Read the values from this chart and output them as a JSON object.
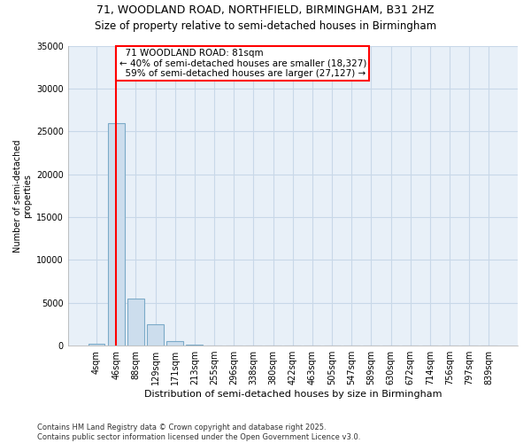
{
  "title_line1": "71, WOODLAND ROAD, NORTHFIELD, BIRMINGHAM, B31 2HZ",
  "title_line2": "Size of property relative to semi-detached houses in Birmingham",
  "xlabel": "Distribution of semi-detached houses by size in Birmingham",
  "ylabel": "Number of semi-detached\nproperties",
  "footnote": "Contains HM Land Registry data © Crown copyright and database right 2025.\nContains public sector information licensed under the Open Government Licence v3.0.",
  "categories": [
    "4sqm",
    "46sqm",
    "88sqm",
    "129sqm",
    "171sqm",
    "213sqm",
    "255sqm",
    "296sqm",
    "338sqm",
    "380sqm",
    "422sqm",
    "463sqm",
    "505sqm",
    "547sqm",
    "589sqm",
    "630sqm",
    "672sqm",
    "714sqm",
    "756sqm",
    "797sqm",
    "839sqm"
  ],
  "bar_heights": [
    200,
    26000,
    5500,
    2500,
    500,
    100,
    0,
    0,
    0,
    0,
    0,
    0,
    0,
    0,
    0,
    0,
    0,
    0,
    0,
    0,
    0
  ],
  "bar_color": "#ccdded",
  "bar_edge_color": "#7baac8",
  "property_sqm": 81,
  "property_bar_index": 1,
  "property_label": "71 WOODLAND ROAD: 81sqm",
  "smaller_pct": 40,
  "smaller_count": 18327,
  "larger_pct": 59,
  "larger_count": 27127,
  "vline_color": "red",
  "annotation_box_edge_color": "red",
  "ylim": [
    0,
    35000
  ],
  "yticks": [
    0,
    5000,
    10000,
    15000,
    20000,
    25000,
    30000,
    35000
  ],
  "grid_color": "#c8d8e8",
  "background_color": "#e8f0f8",
  "title_fontsize": 9,
  "subtitle_fontsize": 8.5,
  "tick_fontsize": 7,
  "ylabel_fontsize": 7,
  "xlabel_fontsize": 8,
  "annotation_fontsize": 7.5
}
